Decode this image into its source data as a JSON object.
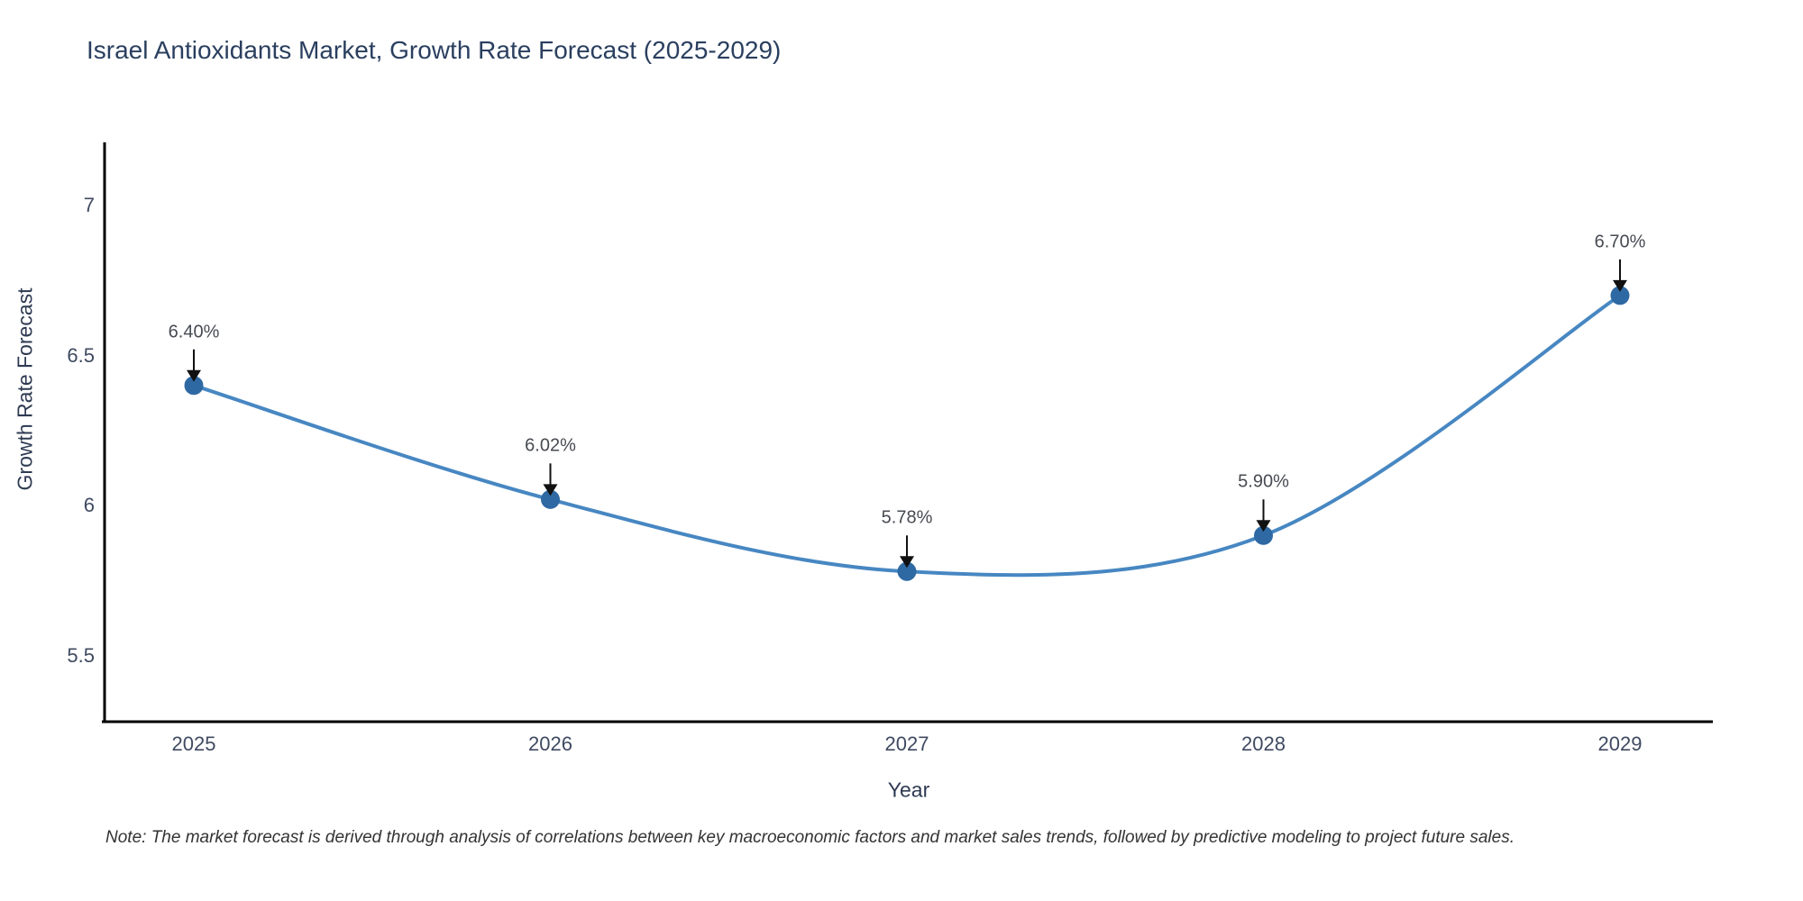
{
  "title": "Israel Antioxidants Market, Growth Rate Forecast (2025-2029)",
  "note": "Note: The market forecast is derived through analysis of correlations between key macroeconomic factors and market sales trends, followed by predictive modeling to project future sales.",
  "chart_data": {
    "type": "line",
    "line_shape": "spline",
    "title": "Israel Antioxidants Market, Growth Rate Forecast (2025-2029)",
    "xlabel": "Year",
    "ylabel": "Growth Rate Forecast",
    "x": [
      2025,
      2026,
      2027,
      2028,
      2029
    ],
    "values": [
      6.4,
      6.02,
      5.78,
      5.9,
      6.7
    ],
    "point_labels": [
      "6.40%",
      "6.02%",
      "5.78%",
      "5.90%",
      "6.70%"
    ],
    "xtick_labels": [
      "2025",
      "2026",
      "2027",
      "2028",
      "2029"
    ],
    "ytick_values": [
      5.5,
      6,
      6.5,
      7
    ],
    "ytick_labels": [
      "5.5",
      "6",
      "6.5",
      "7"
    ],
    "ylim": [
      5.28,
      7.2
    ],
    "grid": false,
    "legend": "none",
    "annotations_have_arrows": true,
    "colors": {
      "line": "#4787c2",
      "marker": "#2f69a3",
      "arrow": "#111111",
      "axis_line": "#000000",
      "title_text": "#2a3f5f",
      "tick_text": "#3f4a61",
      "annotation_text": "#474b52",
      "note_text": "#333333",
      "background": "#ffffff"
    }
  }
}
